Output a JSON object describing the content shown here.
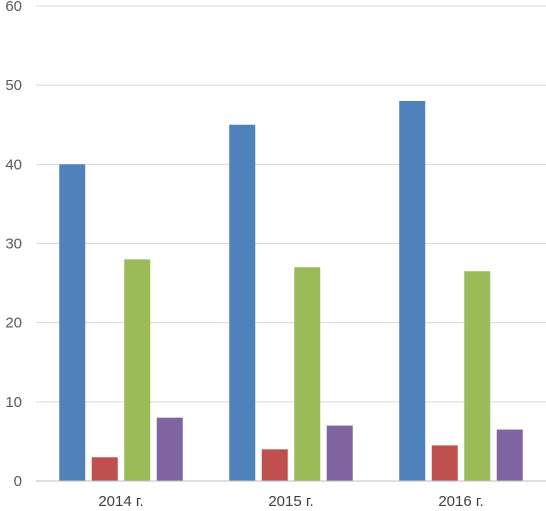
{
  "chart_data": {
    "type": "bar",
    "categories": [
      "2014 г.",
      "2015 г.",
      "2016 г."
    ],
    "series": [
      {
        "values": [
          40,
          45,
          48
        ],
        "color": "#4f81bd"
      },
      {
        "values": [
          3,
          4,
          4.5
        ],
        "color": "#c0504d"
      },
      {
        "values": [
          28,
          27,
          26.5
        ],
        "color": "#9bbb59"
      },
      {
        "values": [
          8,
          7,
          6.5
        ],
        "color": "#8064a2"
      }
    ],
    "yticks": [
      "0",
      "10",
      "20",
      "30",
      "40",
      "50",
      "60"
    ],
    "ylim": [
      0,
      60
    ],
    "grid": true,
    "legend": "none"
  }
}
